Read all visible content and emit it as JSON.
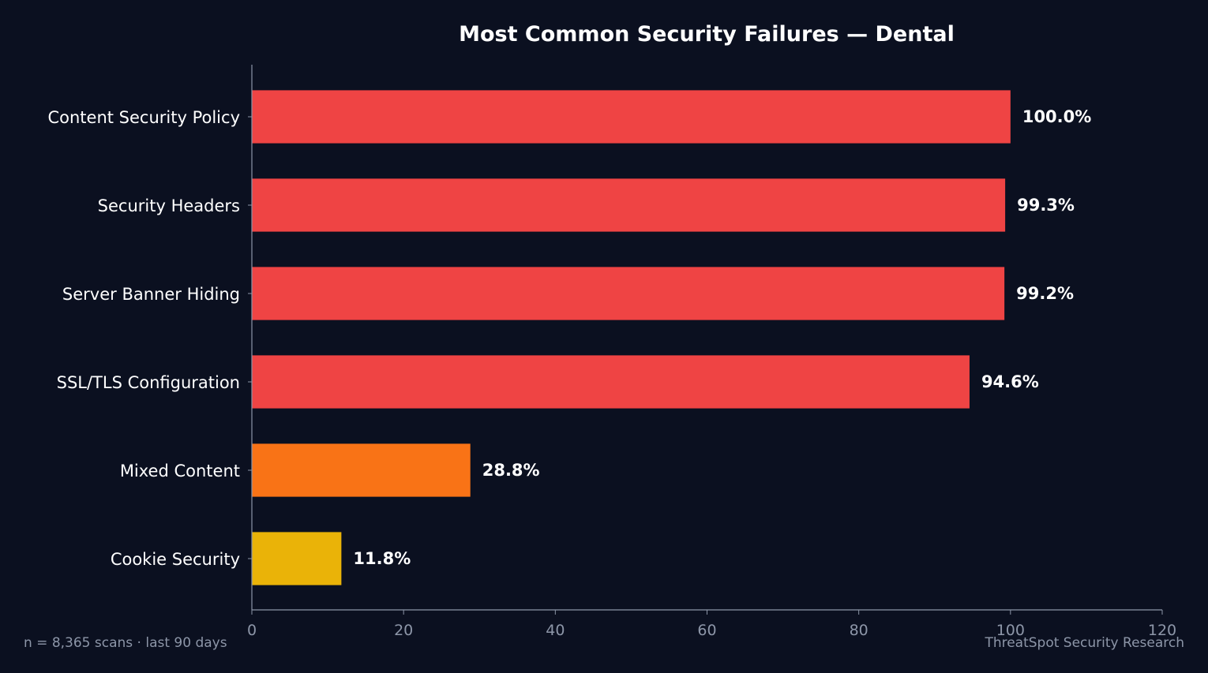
{
  "chart_data": {
    "type": "bar",
    "orientation": "horizontal",
    "title": "Most Common Security Failures — Dental",
    "xlabel": "",
    "ylabel": "",
    "categories": [
      "Content Security Policy",
      "Security Headers",
      "Server Banner Hiding",
      "SSL/TLS Configuration",
      "Mixed Content",
      "Cookie Security"
    ],
    "values": [
      100.0,
      99.3,
      99.2,
      94.6,
      28.8,
      11.8
    ],
    "value_labels": [
      "100.0%",
      "99.3%",
      "99.2%",
      "94.6%",
      "28.8%",
      "11.8%"
    ],
    "bar_colors": [
      "#ef4444",
      "#ef4444",
      "#ef4444",
      "#ef4444",
      "#f97316",
      "#eab308"
    ],
    "xlim": [
      0,
      120
    ],
    "xticks": [
      0,
      20,
      40,
      60,
      80,
      100,
      120
    ],
    "grid": false,
    "legend": "none"
  },
  "footer": {
    "left": "n = 8,365 scans · last 90 days",
    "right": "ThreatSpot Security Research"
  },
  "colors": {
    "background": "#0b1020",
    "axis": "#8d96a8",
    "text": "#ffffff"
  }
}
